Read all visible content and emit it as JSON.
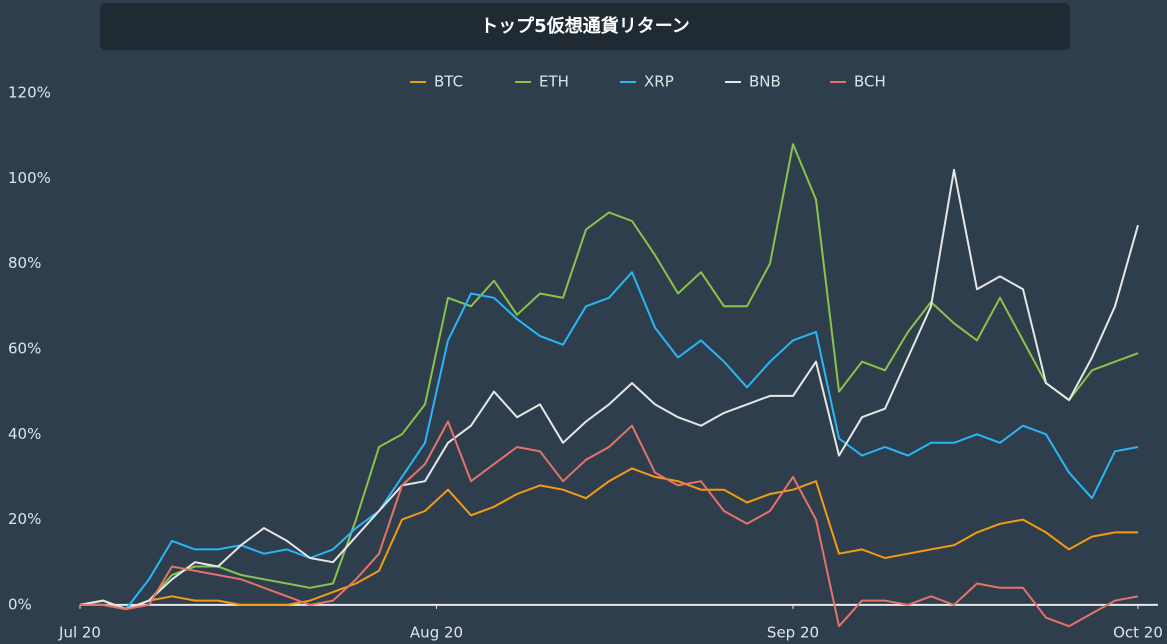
{
  "chart_data": {
    "type": "line",
    "title": "トップ5仮想通貨リターン",
    "x": [
      0,
      2,
      4,
      6,
      8,
      10,
      12,
      14,
      16,
      18,
      20,
      22,
      24,
      26,
      28,
      30,
      32,
      34,
      36,
      38,
      40,
      42,
      44,
      46,
      48,
      50,
      52,
      54,
      56,
      58,
      60,
      62,
      64,
      66,
      68,
      70,
      72,
      74,
      76,
      78,
      80,
      82,
      84,
      86,
      88,
      90,
      92
    ],
    "xlim": [
      0,
      92
    ],
    "xticks": [
      {
        "value": 0,
        "label": "Jul 20"
      },
      {
        "value": 31,
        "label": "Aug 20"
      },
      {
        "value": 62,
        "label": "Sep 20"
      },
      {
        "value": 92,
        "label": "Oct 20"
      }
    ],
    "ylim": [
      -8,
      120
    ],
    "yticks": [
      {
        "value": 0,
        "label": "0%"
      },
      {
        "value": 20,
        "label": "20%"
      },
      {
        "value": 40,
        "label": "40%"
      },
      {
        "value": 60,
        "label": "60%"
      },
      {
        "value": 80,
        "label": "80%"
      },
      {
        "value": 100,
        "label": "100%"
      },
      {
        "value": 120,
        "label": "120%"
      }
    ],
    "grid": false,
    "legend": "top",
    "series": [
      {
        "name": "BTC",
        "color": "#f39c12",
        "values": [
          0,
          1,
          -1,
          1,
          2,
          1,
          1,
          0,
          0,
          0,
          1,
          3,
          5,
          8,
          20,
          22,
          27,
          21,
          23,
          26,
          28,
          27,
          25,
          29,
          32,
          30,
          29,
          27,
          27,
          24,
          26,
          27,
          29,
          12,
          13,
          11,
          12,
          13,
          14,
          17,
          19,
          20,
          17,
          13,
          16,
          17,
          17
        ]
      },
      {
        "name": "ETH",
        "color": "#8bc34a",
        "values": [
          0,
          1,
          -1,
          1,
          7,
          9,
          9,
          7,
          6,
          5,
          4,
          5,
          20,
          37,
          40,
          47,
          72,
          70,
          76,
          68,
          73,
          72,
          88,
          92,
          90,
          82,
          73,
          78,
          70,
          70,
          80,
          108,
          95,
          50,
          57,
          55,
          64,
          71,
          66,
          62,
          72,
          62,
          52,
          48,
          55,
          57,
          59
        ]
      },
      {
        "name": "XRP",
        "color": "#29b6f6",
        "values": [
          0,
          0,
          -1,
          6,
          15,
          13,
          13,
          14,
          12,
          13,
          11,
          13,
          18,
          22,
          30,
          38,
          62,
          73,
          72,
          67,
          63,
          61,
          70,
          72,
          78,
          65,
          58,
          62,
          57,
          51,
          57,
          62,
          64,
          39,
          35,
          37,
          35,
          38,
          38,
          40,
          38,
          42,
          40,
          31,
          25,
          36,
          37
        ]
      },
      {
        "name": "BNB",
        "color": "#e6e6e6",
        "values": [
          0,
          1,
          -1,
          1,
          6,
          10,
          9,
          14,
          18,
          15,
          11,
          10,
          16,
          22,
          28,
          29,
          38,
          42,
          50,
          44,
          47,
          38,
          43,
          47,
          52,
          47,
          44,
          42,
          45,
          47,
          49,
          49,
          57,
          35,
          44,
          46,
          58,
          70,
          102,
          74,
          77,
          74,
          52,
          48,
          58,
          70,
          89
        ]
      },
      {
        "name": "BCH",
        "color": "#e5736a",
        "values": [
          0,
          0,
          -1,
          0,
          9,
          8,
          7,
          6,
          4,
          2,
          0,
          1,
          6,
          12,
          28,
          33,
          43,
          29,
          33,
          37,
          36,
          29,
          34,
          37,
          42,
          31,
          28,
          29,
          22,
          19,
          22,
          30,
          20,
          -5,
          1,
          1,
          0,
          2,
          0,
          5,
          4,
          4,
          -3,
          -5,
          -2,
          1,
          2
        ]
      }
    ]
  }
}
